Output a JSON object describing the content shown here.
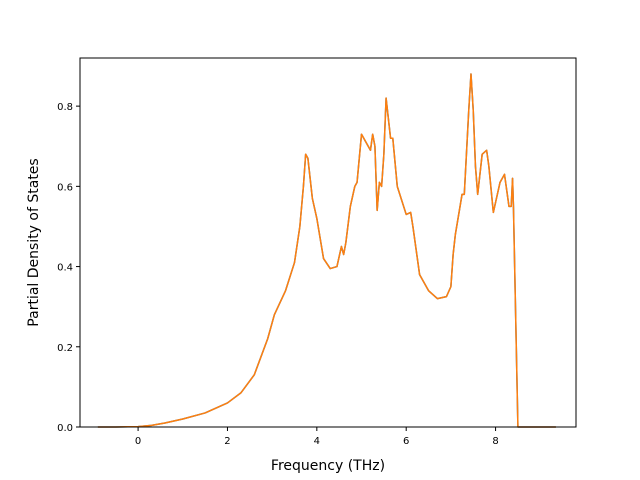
{
  "chart_data": {
    "type": "line",
    "title": "",
    "xlabel": "Frequency (THz)",
    "ylabel": "Partial Density of States",
    "xlim": [
      -1.3,
      9.8
    ],
    "ylim": [
      0.0,
      0.92
    ],
    "xticks": [
      0,
      2,
      4,
      6,
      8
    ],
    "yticks": [
      0.0,
      0.2,
      0.4,
      0.6,
      0.8
    ],
    "xtick_labels": [
      "0",
      "2",
      "4",
      "6",
      "8"
    ],
    "ytick_labels": [
      "0.0",
      "0.2",
      "0.4",
      "0.6",
      "0.8"
    ],
    "grid": false,
    "legend": "none",
    "series": [
      {
        "color": "#1f77b4",
        "x": [
          -0.9,
          -0.5,
          0.0,
          0.3,
          0.6,
          1.0,
          1.5,
          2.0,
          2.3,
          2.6,
          2.9,
          3.05,
          3.3,
          3.5,
          3.62,
          3.7,
          3.75,
          3.8,
          3.9,
          4.0,
          4.15,
          4.3,
          4.45,
          4.55,
          4.6,
          4.65,
          4.75,
          4.85,
          4.9,
          5.0,
          5.1,
          5.2,
          5.25,
          5.3,
          5.35,
          5.4,
          5.45,
          5.5,
          5.55,
          5.65,
          5.7,
          5.8,
          6.0,
          6.1,
          6.15,
          6.3,
          6.5,
          6.7,
          6.9,
          7.0,
          7.05,
          7.1,
          7.25,
          7.3,
          7.4,
          7.45,
          7.5,
          7.55,
          7.6,
          7.7,
          7.8,
          7.85,
          7.95,
          8.0,
          8.1,
          8.2,
          8.3,
          8.35,
          8.38,
          8.4,
          8.5,
          8.6,
          9.0,
          9.35
        ],
        "y": [
          0.0,
          0.0,
          0.001,
          0.004,
          0.01,
          0.02,
          0.035,
          0.06,
          0.085,
          0.13,
          0.22,
          0.28,
          0.34,
          0.41,
          0.5,
          0.6,
          0.68,
          0.67,
          0.57,
          0.52,
          0.42,
          0.395,
          0.4,
          0.45,
          0.43,
          0.46,
          0.55,
          0.6,
          0.61,
          0.73,
          0.71,
          0.69,
          0.73,
          0.7,
          0.54,
          0.61,
          0.6,
          0.68,
          0.82,
          0.72,
          0.72,
          0.6,
          0.53,
          0.535,
          0.5,
          0.38,
          0.34,
          0.32,
          0.325,
          0.35,
          0.43,
          0.48,
          0.58,
          0.58,
          0.79,
          0.88,
          0.79,
          0.65,
          0.58,
          0.68,
          0.69,
          0.65,
          0.535,
          0.56,
          0.61,
          0.63,
          0.55,
          0.55,
          0.62,
          0.55,
          0.0,
          0.0,
          0.0,
          0.0
        ]
      },
      {
        "color": "#ff7f0e",
        "x": [
          -0.9,
          -0.5,
          0.0,
          0.3,
          0.6,
          1.0,
          1.5,
          2.0,
          2.3,
          2.6,
          2.9,
          3.05,
          3.3,
          3.5,
          3.62,
          3.7,
          3.75,
          3.8,
          3.9,
          4.0,
          4.15,
          4.3,
          4.45,
          4.55,
          4.6,
          4.65,
          4.75,
          4.85,
          4.9,
          5.0,
          5.1,
          5.2,
          5.25,
          5.3,
          5.35,
          5.4,
          5.45,
          5.5,
          5.55,
          5.65,
          5.7,
          5.8,
          6.0,
          6.1,
          6.15,
          6.3,
          6.5,
          6.7,
          6.9,
          7.0,
          7.05,
          7.1,
          7.25,
          7.3,
          7.4,
          7.45,
          7.5,
          7.55,
          7.6,
          7.7,
          7.8,
          7.85,
          7.95,
          8.0,
          8.1,
          8.2,
          8.3,
          8.35,
          8.38,
          8.4,
          8.5,
          8.6,
          9.0,
          9.35
        ],
        "y": [
          0.0,
          0.0,
          0.001,
          0.004,
          0.01,
          0.02,
          0.035,
          0.06,
          0.085,
          0.13,
          0.22,
          0.28,
          0.34,
          0.41,
          0.5,
          0.6,
          0.68,
          0.67,
          0.57,
          0.52,
          0.42,
          0.395,
          0.4,
          0.45,
          0.43,
          0.46,
          0.55,
          0.6,
          0.61,
          0.73,
          0.71,
          0.69,
          0.73,
          0.7,
          0.54,
          0.61,
          0.6,
          0.68,
          0.82,
          0.72,
          0.72,
          0.6,
          0.53,
          0.535,
          0.5,
          0.38,
          0.34,
          0.32,
          0.325,
          0.35,
          0.43,
          0.48,
          0.58,
          0.58,
          0.79,
          0.88,
          0.79,
          0.65,
          0.58,
          0.68,
          0.69,
          0.65,
          0.535,
          0.56,
          0.61,
          0.63,
          0.55,
          0.55,
          0.62,
          0.55,
          0.0,
          0.0,
          0.0,
          0.0
        ]
      }
    ]
  }
}
